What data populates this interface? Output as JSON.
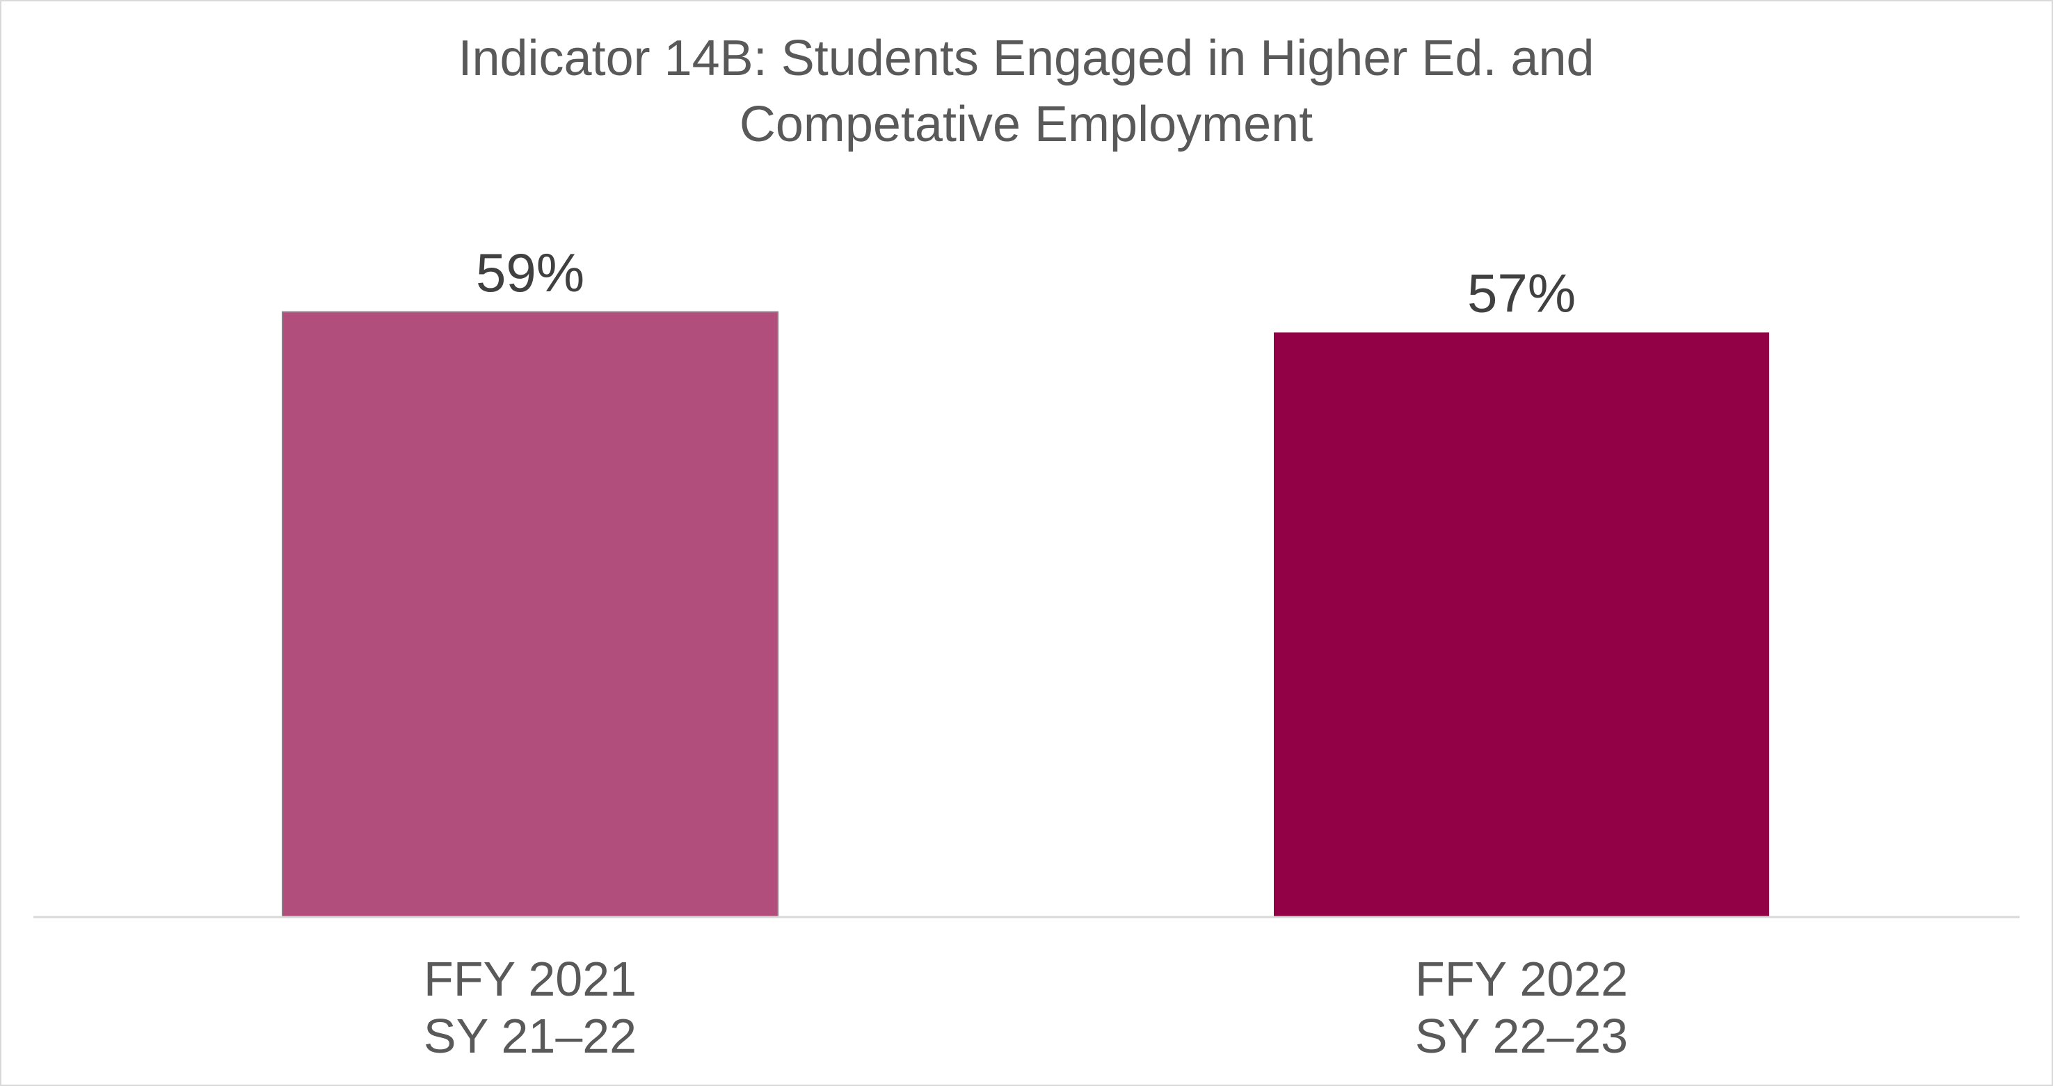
{
  "chart_data": {
    "type": "bar",
    "title_lines": [
      "Indicator 14B: Students Engaged in Higher Ed. and",
      "Competative Employment"
    ],
    "categories": [
      {
        "lines": [
          "FFY 2021",
          "SY 21–22"
        ]
      },
      {
        "lines": [
          "FFY 2022",
          "SY 22–23"
        ]
      }
    ],
    "values": [
      59,
      57
    ],
    "data_labels": [
      "59%",
      "57%"
    ],
    "colors": [
      "#b24e7c",
      "#920045"
    ],
    "ylim": [
      0,
      100
    ],
    "grid": false,
    "legend": "none",
    "xlabel": "",
    "ylabel": ""
  }
}
